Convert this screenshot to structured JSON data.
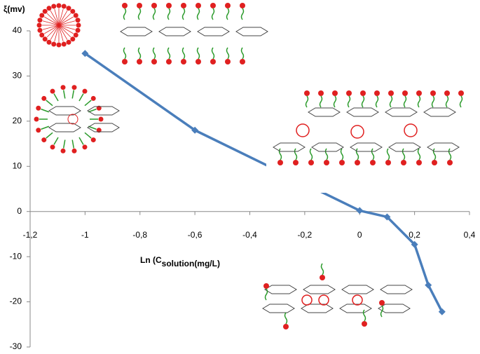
{
  "chart_data": {
    "type": "line",
    "ylabel": "ξ(mv)",
    "xlabel": {
      "main": "Ln (C",
      "sub": "solution(mg/L)"
    },
    "xlim": [
      -1.2,
      0.4
    ],
    "xticks": [
      {
        "value": -1.2,
        "label": "-1,2"
      },
      -1,
      {
        "value": -0.8,
        "label": "-0,8"
      },
      {
        "value": -0.6,
        "label": "-0,6"
      },
      {
        "value": -0.4,
        "label": "-0,4"
      },
      {
        "value": -0.2,
        "label": "-0,2"
      },
      0,
      {
        "value": 0.2,
        "label": "0,2"
      },
      {
        "value": 0.4,
        "label": "0,4"
      }
    ],
    "ylim": [
      -30,
      40
    ],
    "yticks": [
      -30,
      -20,
      -10,
      0,
      10,
      20,
      30,
      40
    ],
    "series": [
      {
        "color": "#4a7ebb",
        "x": [
          -1,
          -0.6,
          0,
          0.1,
          0.2,
          0.25,
          0.3
        ],
        "values": [
          35,
          18,
          0.2,
          -1.2,
          -7.3,
          -16.3,
          -22.2
        ]
      }
    ]
  }
}
